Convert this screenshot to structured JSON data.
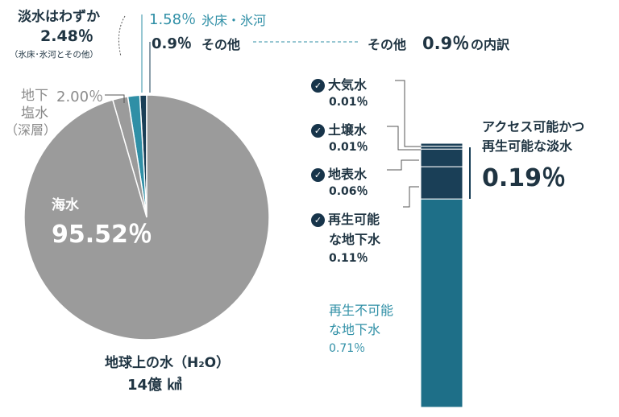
{
  "chart_data": [
    {
      "type": "pie",
      "title": "地球上の水（H₂O）",
      "total": "14億 ㎦",
      "slices": [
        {
          "name": "海水",
          "value": 95.52,
          "color": "#9b9b9b"
        },
        {
          "name": "地下塩水（深層）",
          "value": 2.0,
          "color": "#9b9b9b"
        },
        {
          "name": "氷床・氷河",
          "value": 1.58,
          "color": "#2f8fa6"
        },
        {
          "name": "その他",
          "value": 0.9,
          "color": "#1a3f57"
        }
      ]
    },
    {
      "type": "bar",
      "title": "その他 0.9% の内訳",
      "orientation": "vertical-stacked",
      "series": [
        {
          "name": "大気水",
          "value": 0.01,
          "color": "#1a3f57"
        },
        {
          "name": "土壌水",
          "value": 0.01,
          "color": "#1a3f57"
        },
        {
          "name": "地表水",
          "value": 0.06,
          "color": "#1a3f57"
        },
        {
          "name": "再生可能な地下水",
          "value": 0.11,
          "color": "#1a3f57"
        },
        {
          "name": "再生不可能な地下水",
          "value": 0.71,
          "color": "#1e6f88"
        }
      ],
      "annotation": {
        "label": "アクセス可能かつ再生可能な淡水",
        "value": "0.19%"
      }
    }
  ],
  "labels": {
    "freshwater_title": "淡水はわずか",
    "freshwater_pct": "2.48％",
    "freshwater_sub": "（氷床･氷河とその他）",
    "ice_pct": "1.58％",
    "ice_name": "氷床・氷河",
    "other_pct": "0.9％",
    "other_name": "その他",
    "breakdown_title_a": "その他",
    "breakdown_title_pct": "0.9％",
    "breakdown_title_b": "の内訳",
    "saline_line1": "地下",
    "saline_pct": "2.00％",
    "saline_line2": "塩水",
    "saline_line3": "（深層）",
    "sea_name": "海水",
    "sea_pct": "95.52％",
    "earth_title": "地球上の水（H₂O）",
    "earth_total": "14億 ㎦",
    "atm_name": "大気水",
    "atm_pct": "0.01％",
    "soil_name": "土壌水",
    "soil_pct": "0.01％",
    "surface_name": "地表水",
    "surface_pct": "0.06％",
    "renew_name1": "再生可能",
    "renew_name2": "な地下水",
    "renew_pct": "0.11％",
    "nonrenew_name1": "再生不可能",
    "nonrenew_name2": "な地下水",
    "nonrenew_pct": "0.71％",
    "access_line1": "アクセス可能かつ",
    "access_line2": "再生可能な淡水",
    "access_pct": "0.19％",
    "check_glyph": "✓"
  }
}
